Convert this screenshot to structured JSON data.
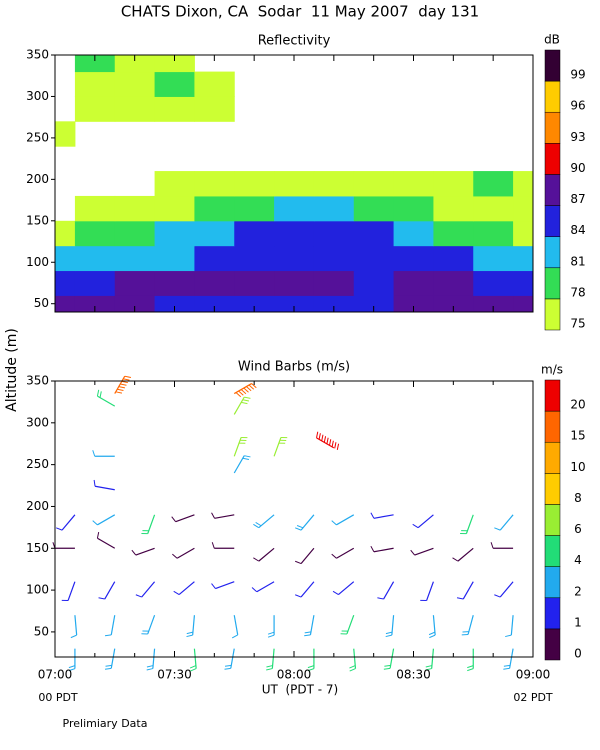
{
  "title": "CHATS Dixon, CA  Sodar  11 May 2007  day 131",
  "chart_data": [
    {
      "type": "contour",
      "title": "Reflectivity",
      "x": [
        0,
        10,
        20,
        30,
        40,
        50,
        60,
        70,
        80,
        90,
        100,
        110,
        120
      ],
      "y": [
        45,
        75,
        105,
        135,
        165,
        195,
        225,
        255,
        285,
        315,
        345
      ],
      "values": [
        [
          88,
          88,
          87,
          86,
          86,
          86,
          85,
          86,
          86,
          87,
          88,
          87,
          87
        ],
        [
          86,
          86,
          87,
          88,
          88,
          88,
          87,
          87,
          86,
          87,
          87,
          86,
          86
        ],
        [
          81,
          82,
          82,
          83,
          84,
          85,
          86,
          86,
          85,
          84,
          84,
          82,
          82
        ],
        [
          76,
          78,
          80,
          81,
          82,
          84,
          85,
          85,
          84,
          82,
          80,
          78,
          77
        ],
        [
          null,
          75,
          76,
          77,
          78,
          80,
          81,
          81,
          80,
          78,
          77,
          76,
          77
        ],
        [
          null,
          null,
          null,
          75,
          75,
          76,
          76,
          76,
          76,
          76,
          77,
          78,
          76
        ],
        [
          null,
          null,
          null,
          null,
          null,
          null,
          null,
          null,
          null,
          null,
          null,
          null,
          null
        ],
        [
          75,
          null,
          null,
          null,
          null,
          null,
          null,
          null,
          null,
          null,
          null,
          null,
          null
        ],
        [
          null,
          76,
          75,
          75,
          76,
          null,
          null,
          null,
          null,
          null,
          null,
          null,
          null
        ],
        [
          null,
          77,
          75,
          79,
          75,
          null,
          null,
          null,
          null,
          null,
          null,
          null,
          null
        ],
        [
          null,
          78,
          75,
          75,
          null,
          null,
          null,
          null,
          null,
          null,
          null,
          null,
          null
        ]
      ],
      "xlim": [
        0,
        120
      ],
      "ylim": [
        40,
        350
      ],
      "xticks": [
        0,
        10,
        20,
        30,
        40,
        50,
        60,
        70,
        80,
        90,
        100,
        110,
        120
      ],
      "yticks": [
        50,
        100,
        150,
        200,
        250,
        300,
        350
      ],
      "colorbar": {
        "unit": "dB",
        "levels": [
          75,
          78,
          81,
          84,
          87,
          90,
          93,
          96,
          99
        ],
        "colors": [
          "#ccff33",
          "#33dd55",
          "#22bbee",
          "#2222dd",
          "#551199",
          "#ee0000",
          "#ff8800",
          "#ffcc00",
          "#330033"
        ]
      }
    },
    {
      "type": "barbs",
      "title": "Wind Barbs (m/s)",
      "ylabel": "Altitude (m)",
      "xlabel": "UT  (PDT - 7)",
      "time": [
        5,
        15,
        25,
        35,
        45,
        55,
        65,
        75,
        85,
        95,
        105,
        115,
        5,
        15,
        25,
        35,
        45,
        55,
        65,
        75,
        85,
        95,
        105,
        115,
        5,
        15,
        25,
        35,
        45,
        55,
        65,
        75,
        85,
        95,
        105,
        115,
        5,
        15,
        25,
        35,
        45,
        55,
        65,
        75,
        85,
        95,
        105,
        115,
        5,
        15,
        25,
        35,
        45,
        55,
        65,
        75,
        85,
        95,
        105,
        115,
        15,
        15,
        15,
        15,
        45,
        45,
        45,
        45,
        55,
        70
      ],
      "altitude": [
        30,
        30,
        30,
        30,
        30,
        30,
        30,
        30,
        30,
        30,
        30,
        30,
        70,
        70,
        70,
        70,
        70,
        70,
        70,
        70,
        70,
        70,
        70,
        70,
        110,
        110,
        110,
        110,
        110,
        110,
        110,
        110,
        110,
        110,
        110,
        110,
        150,
        150,
        150,
        150,
        150,
        150,
        150,
        150,
        150,
        150,
        150,
        150,
        190,
        190,
        190,
        190,
        190,
        190,
        190,
        190,
        190,
        190,
        190,
        190,
        220,
        260,
        320,
        335,
        335,
        310,
        260,
        240,
        260,
        270
      ],
      "speed": [
        3,
        3,
        3,
        4,
        3,
        4,
        4,
        5,
        4,
        4,
        4,
        3,
        2,
        2,
        3,
        3,
        2,
        3,
        3,
        4,
        3,
        3,
        3,
        2,
        1.5,
        1.5,
        1.2,
        1.5,
        1.0,
        1.2,
        1.5,
        1.5,
        1.5,
        1.2,
        1.5,
        1.5,
        0.5,
        0.5,
        0.5,
        0.8,
        0.5,
        0.8,
        0.8,
        0.8,
        0.8,
        0.5,
        0.5,
        0.5,
        1.5,
        2,
        5,
        0.8,
        0.5,
        3,
        3,
        2,
        1,
        1,
        5,
        2,
        1,
        2,
        5,
        16,
        16,
        6,
        7,
        3,
        7,
        21
      ],
      "direction": [
        180,
        190,
        185,
        175,
        190,
        185,
        180,
        175,
        190,
        185,
        180,
        190,
        175,
        190,
        200,
        185,
        170,
        180,
        190,
        200,
        185,
        175,
        195,
        185,
        200,
        210,
        220,
        230,
        250,
        240,
        220,
        230,
        210,
        200,
        210,
        220,
        270,
        300,
        250,
        240,
        270,
        230,
        220,
        240,
        260,
        250,
        230,
        270,
        220,
        240,
        200,
        250,
        260,
        230,
        220,
        240,
        260,
        230,
        200,
        220,
        280,
        270,
        300,
        30,
        60,
        30,
        20,
        30,
        20,
        300
      ],
      "xlim": [
        0,
        120
      ],
      "ylim": [
        20,
        350
      ],
      "xticks": [
        {
          "value": 0,
          "label": "07:00"
        },
        {
          "value": 30,
          "label": "07:30"
        },
        {
          "value": 60,
          "label": "08:00"
        },
        {
          "value": 90,
          "label": "08:30"
        },
        {
          "value": 120,
          "label": "09:00"
        }
      ],
      "xminor": [
        10,
        20,
        40,
        50,
        70,
        80,
        100,
        110
      ],
      "yticks": [
        50,
        100,
        150,
        200,
        250,
        300,
        350
      ],
      "colorbar": {
        "unit": "m/s",
        "levels": [
          0,
          1,
          2,
          4,
          6,
          8,
          10,
          15,
          20
        ],
        "colors": [
          "#440044",
          "#2222ee",
          "#22aaee",
          "#22dd77",
          "#99ee33",
          "#ffcc00",
          "#ffaa00",
          "#ff6600",
          "#ee0000"
        ]
      }
    }
  ],
  "notes": {
    "left": "00 PDT",
    "right": "02 PDT",
    "footer": "Prelimiary Data"
  }
}
